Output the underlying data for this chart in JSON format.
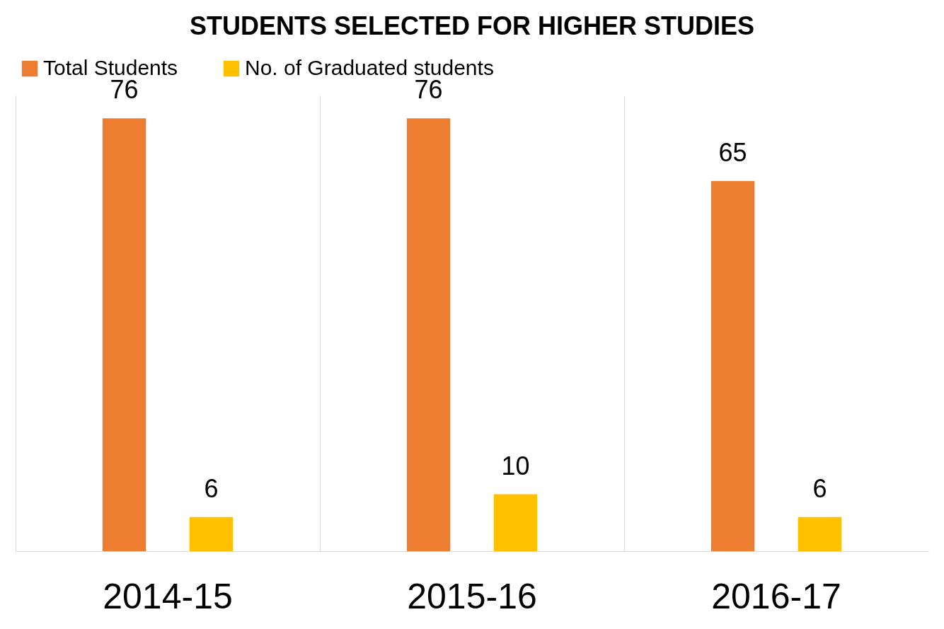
{
  "chart_data": {
    "type": "bar",
    "title": "STUDENTS SELECTED FOR HIGHER STUDIES",
    "categories": [
      "2014-15",
      "2015-16",
      "2016-17"
    ],
    "series": [
      {
        "name": "Total Students",
        "color": "#ed7d31",
        "values": [
          76,
          76,
          65
        ]
      },
      {
        "name": "No. of Graduated students",
        "color": "#ffc000",
        "values": [
          6,
          10,
          6
        ]
      }
    ],
    "data_labels": true,
    "legend": "top",
    "grid": "x"
  }
}
